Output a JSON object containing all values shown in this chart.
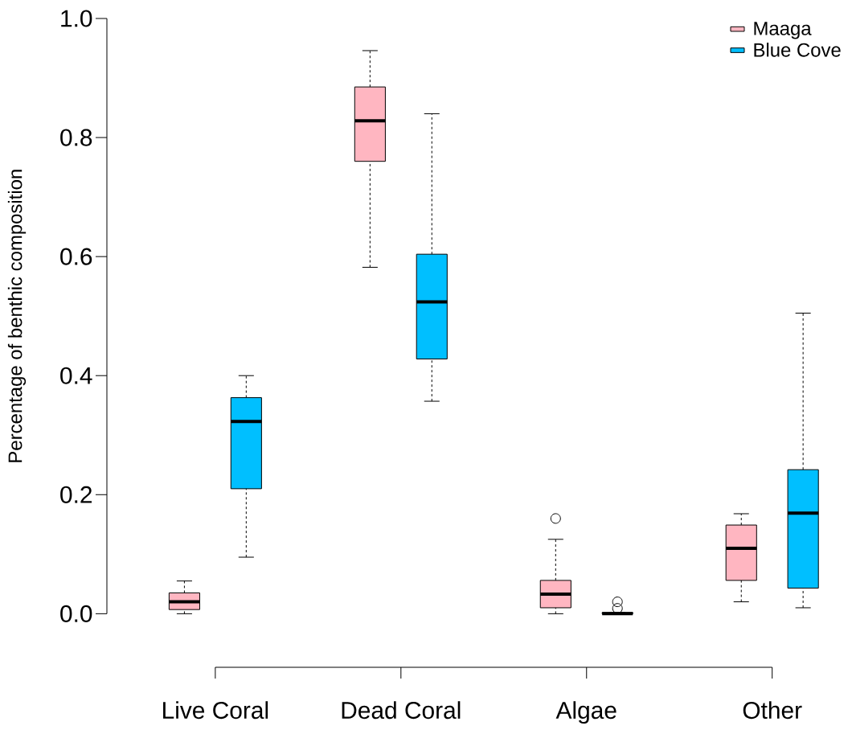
{
  "chart_data": {
    "type": "box",
    "ylabel": "Percentage of benthic composition",
    "categories": [
      "Live Coral",
      "Dead Coral",
      "Algae",
      "Other"
    ],
    "series": [
      {
        "name": "Maaga",
        "color": "#ffb6c1",
        "boxes": [
          {
            "low": 0.0,
            "q1": 0.007,
            "median": 0.02,
            "q3": 0.035,
            "high": 0.055
          },
          {
            "low": 0.582,
            "q1": 0.76,
            "median": 0.828,
            "q3": 0.885,
            "high": 0.946
          },
          {
            "low": 0.0,
            "q1": 0.01,
            "median": 0.033,
            "q3": 0.056,
            "high": 0.125,
            "outliers": [
              0.16
            ]
          },
          {
            "low": 0.02,
            "q1": 0.056,
            "median": 0.11,
            "q3": 0.149,
            "high": 0.168
          }
        ]
      },
      {
        "name": "Blue Cove",
        "color": "#00bfff",
        "boxes": [
          {
            "low": 0.095,
            "q1": 0.21,
            "median": 0.323,
            "q3": 0.363,
            "high": 0.4
          },
          {
            "low": 0.357,
            "q1": 0.428,
            "median": 0.524,
            "q3": 0.604,
            "high": 0.84
          },
          {
            "low": 0.0,
            "q1": 0.0,
            "median": 0.0,
            "q3": 0.002,
            "high": 0.002,
            "outliers": [
              0.02,
              0.009
            ]
          },
          {
            "low": 0.01,
            "q1": 0.043,
            "median": 0.169,
            "q3": 0.242,
            "high": 0.505
          }
        ]
      }
    ],
    "ylim": [
      -0.09,
      1.0
    ],
    "yticks": [
      {
        "value": 0,
        "label": "0.0"
      },
      0.2,
      0.4,
      0.6,
      0.8,
      {
        "value": 1,
        "label": "1.0"
      }
    ],
    "legend": "top right"
  }
}
